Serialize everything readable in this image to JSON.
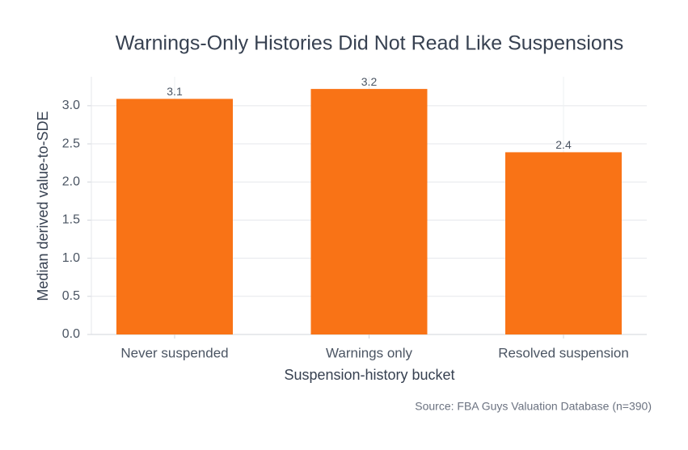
{
  "chart_data": {
    "type": "bar",
    "title": "Warnings-Only Histories Did Not Read Like Suspensions",
    "x_label": "Suspension-history bucket",
    "y_label": "Median derived value-to-SDE",
    "source": "Source: FBA Guys Valuation Database (n=390)",
    "categories": [
      "Never suspended",
      "Warnings only",
      "Resolved suspension"
    ],
    "values": [
      3.09,
      3.22,
      2.39
    ],
    "value_labels": [
      "3.1",
      "3.2",
      "2.4"
    ],
    "color": "#f97316",
    "ylim": [
      0,
      3.38
    ],
    "yticks": [
      {
        "value": 0,
        "label": "0.0"
      },
      {
        "value": 0.5,
        "label": "0.5"
      },
      {
        "value": 1,
        "label": "1.0"
      },
      {
        "value": 1.5,
        "label": "1.5"
      },
      {
        "value": 2,
        "label": "2.0"
      },
      {
        "value": 2.5,
        "label": "2.5"
      },
      {
        "value": 3,
        "label": "3.0"
      }
    ],
    "grid": true
  }
}
